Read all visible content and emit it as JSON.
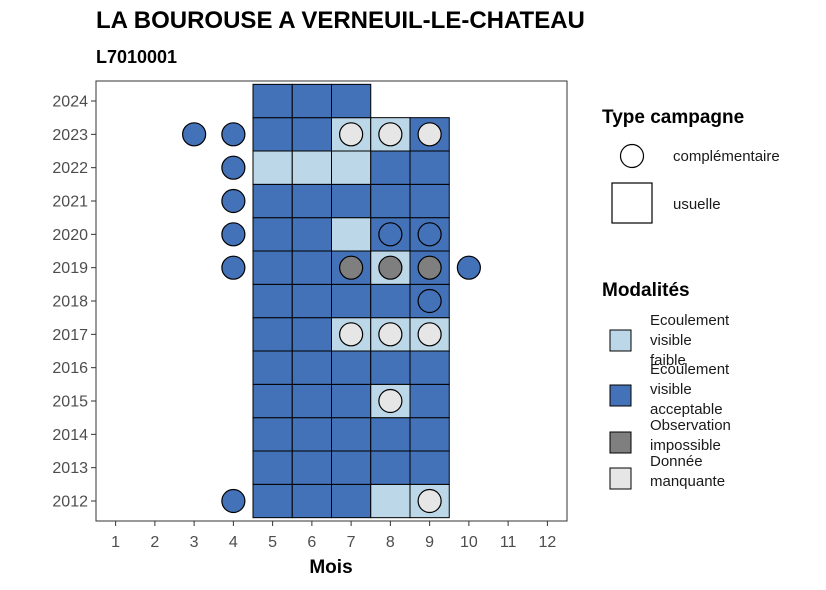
{
  "header": {
    "title": "LA BOUROUSE A VERNEUIL-LE-CHATEAU",
    "subtitle": "L7010001"
  },
  "chart_data": {
    "type": "heatmap",
    "title": "LA BOUROUSE A VERNEUIL-LE-CHATEAU",
    "subtitle": "L7010001",
    "xlabel": "Mois",
    "ylabel": "",
    "x_ticks": [
      "1",
      "2",
      "3",
      "4",
      "5",
      "6",
      "7",
      "8",
      "9",
      "10",
      "11",
      "12"
    ],
    "y_ticks": [
      "2012",
      "2013",
      "2014",
      "2015",
      "2016",
      "2017",
      "2018",
      "2019",
      "2020",
      "2021",
      "2022",
      "2023",
      "2024"
    ],
    "xlim": [
      0.5,
      12.5
    ],
    "ylim": [
      2011.4,
      2024.6
    ],
    "grid": false,
    "modality_colors": {
      "Ecoulement visible faible": "#bcd8e8",
      "Ecoulement visible acceptable": "#4372b8",
      "Observation impossible": "#7f7f7f",
      "Donnée manquante": "#e6e6e6"
    },
    "usuelle": [
      {
        "year": 2012,
        "months": [
          "acc",
          "acc",
          "acc",
          "faible",
          "faible"
        ]
      },
      {
        "year": 2013,
        "months": [
          "acc",
          "acc",
          "acc",
          "acc",
          "acc"
        ]
      },
      {
        "year": 2014,
        "months": [
          "acc",
          "acc",
          "acc",
          "acc",
          "acc"
        ]
      },
      {
        "year": 2015,
        "months": [
          "acc",
          "acc",
          "acc",
          "faible",
          "acc"
        ]
      },
      {
        "year": 2016,
        "months": [
          "acc",
          "acc",
          "acc",
          "acc",
          "acc"
        ]
      },
      {
        "year": 2017,
        "months": [
          "acc",
          "acc",
          "faible",
          "faible",
          "faible"
        ]
      },
      {
        "year": 2018,
        "months": [
          "acc",
          "acc",
          "acc",
          "acc",
          "acc"
        ]
      },
      {
        "year": 2019,
        "months": [
          "acc",
          "acc",
          "acc",
          "faible",
          "acc"
        ]
      },
      {
        "year": 2020,
        "months": [
          "acc",
          "acc",
          "faible",
          "acc",
          "acc"
        ]
      },
      {
        "year": 2021,
        "months": [
          "acc",
          "acc",
          "acc",
          "acc",
          "acc"
        ]
      },
      {
        "year": 2022,
        "months": [
          "faible",
          "faible",
          "faible",
          "acc",
          "acc"
        ]
      },
      {
        "year": 2023,
        "months": [
          "acc",
          "acc",
          "faible",
          "faible",
          "acc"
        ]
      },
      {
        "year": 2024,
        "months": [
          "acc",
          "acc",
          "acc",
          null,
          null
        ]
      }
    ],
    "usuelle_first_month": 5,
    "complementaire": [
      {
        "year": 2012,
        "month": 4,
        "modalite": "acc"
      },
      {
        "year": 2012,
        "month": 9,
        "modalite": "manquante"
      },
      {
        "year": 2015,
        "month": 8,
        "modalite": "manquante"
      },
      {
        "year": 2017,
        "month": 7,
        "modalite": "manquante"
      },
      {
        "year": 2017,
        "month": 8,
        "modalite": "manquante"
      },
      {
        "year": 2017,
        "month": 9,
        "modalite": "manquante"
      },
      {
        "year": 2018,
        "month": 9,
        "modalite": "acc"
      },
      {
        "year": 2019,
        "month": 4,
        "modalite": "acc"
      },
      {
        "year": 2019,
        "month": 7,
        "modalite": "impossible"
      },
      {
        "year": 2019,
        "month": 8,
        "modalite": "impossible"
      },
      {
        "year": 2019,
        "month": 9,
        "modalite": "impossible"
      },
      {
        "year": 2019,
        "month": 10,
        "modalite": "acc"
      },
      {
        "year": 2020,
        "month": 4,
        "modalite": "acc"
      },
      {
        "year": 2020,
        "month": 8,
        "modalite": "acc"
      },
      {
        "year": 2020,
        "month": 9,
        "modalite": "acc"
      },
      {
        "year": 2021,
        "month": 4,
        "modalite": "acc"
      },
      {
        "year": 2022,
        "month": 4,
        "modalite": "acc"
      },
      {
        "year": 2023,
        "month": 3,
        "modalite": "acc"
      },
      {
        "year": 2023,
        "month": 4,
        "modalite": "acc"
      },
      {
        "year": 2023,
        "month": 7,
        "modalite": "manquante"
      },
      {
        "year": 2023,
        "month": 8,
        "modalite": "manquante"
      },
      {
        "year": 2023,
        "month": 9,
        "modalite": "manquante"
      }
    ],
    "modality_key": {
      "faible": "Ecoulement visible faible",
      "acc": "Ecoulement visible acceptable",
      "impossible": "Observation impossible",
      "manquante": "Donnée manquante"
    }
  },
  "legend": {
    "type_title": "Type campagne",
    "type_items": [
      {
        "label": "complémentaire",
        "shape": "circle"
      },
      {
        "label": "usuelle",
        "shape": "square"
      }
    ],
    "modalites_title": "Modalités",
    "modalites_items": [
      {
        "lines": [
          "Ecoulement",
          "visible",
          "faible"
        ],
        "color": "#bcd8e8"
      },
      {
        "lines": [
          "Ecoulement",
          "visible",
          "acceptable"
        ],
        "color": "#4372b8"
      },
      {
        "lines": [
          "Observation",
          "impossible"
        ],
        "color": "#7f7f7f"
      },
      {
        "lines": [
          "Donnée",
          "manquante"
        ],
        "color": "#e6e6e6"
      }
    ]
  }
}
